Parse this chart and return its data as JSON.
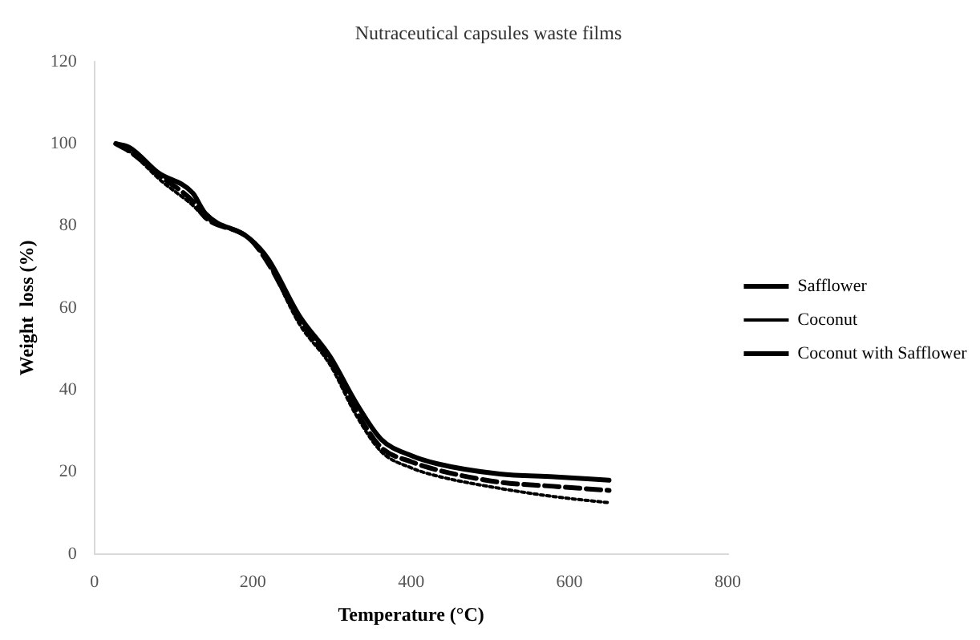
{
  "chart_data": {
    "type": "line",
    "title": "Nutraceutical capsules waste films",
    "xlabel": "Temperature (°C)",
    "ylabel": "Weight  loss (%)",
    "xlim": [
      0,
      800
    ],
    "xticks": [
      0,
      200,
      400,
      600,
      800
    ],
    "ylim": [
      0,
      120
    ],
    "yticks": [
      0,
      20,
      40,
      60,
      80,
      100,
      120
    ],
    "grid": false,
    "legend": "right",
    "marker": "none",
    "series": [
      {
        "name": "Safflower",
        "color": "#000000",
        "line_style": "solid",
        "x": [
          27,
          45,
          80,
          124,
          140,
          195,
          219,
          259,
          298,
          330,
          362,
          400,
          433,
          512,
          580,
          650
        ],
        "values": [
          100,
          99,
          93,
          88,
          83,
          77,
          72,
          58,
          48,
          37,
          28,
          24,
          22,
          19.5,
          18.8,
          18
        ]
      },
      {
        "name": "Coconut",
        "color": "#000000",
        "line_style": "dotted",
        "x": [
          27,
          45,
          84,
          124,
          140,
          195,
          219,
          259,
          298,
          330,
          362,
          400,
          433,
          512,
          580,
          650
        ],
        "values": [
          100,
          98,
          91,
          85,
          82,
          77,
          71,
          56,
          46,
          34,
          25,
          21,
          19,
          16,
          14,
          12.5
        ]
      },
      {
        "name": "Coconut with Safflower",
        "color": "#000000",
        "line_style": "dashed",
        "x": [
          27,
          45,
          84,
          124,
          140,
          195,
          219,
          259,
          298,
          330,
          362,
          400,
          433,
          512,
          580,
          650
        ],
        "values": [
          100,
          98,
          92,
          86,
          82,
          77,
          71,
          57,
          47,
          35,
          26,
          22.5,
          20.5,
          17.5,
          16.5,
          15.5
        ]
      }
    ]
  }
}
